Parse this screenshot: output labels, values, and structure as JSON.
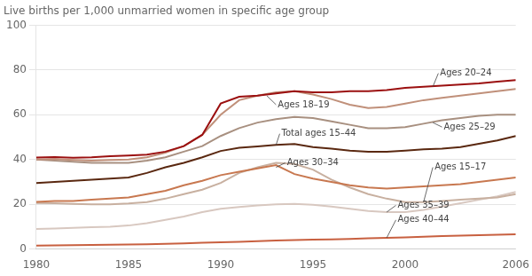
{
  "chart_data": {
    "type": "line",
    "title": "Live births per 1,000 unmarried women in specific age group",
    "xlim": [
      1980,
      2006
    ],
    "ylim": [
      0,
      100
    ],
    "xticks": [
      1980,
      1985,
      1990,
      1995,
      2000,
      2006
    ],
    "yticks": [
      0,
      20,
      40,
      60,
      80,
      100
    ],
    "grid": "y",
    "x": [
      1980,
      1981,
      1982,
      1983,
      1984,
      1985,
      1986,
      1987,
      1988,
      1989,
      1990,
      1991,
      1992,
      1993,
      1994,
      1995,
      1996,
      1997,
      1998,
      1999,
      2000,
      2001,
      2002,
      2003,
      2004,
      2005,
      2006
    ],
    "series": [
      {
        "name": "Ages 20–24",
        "color": "#9b1010",
        "values": [
          40.9,
          41.1,
          40.8,
          41.0,
          41.5,
          41.8,
          42.2,
          43.5,
          46.0,
          51.0,
          65.0,
          68.0,
          68.5,
          69.5,
          70.5,
          70.0,
          70.0,
          70.5,
          70.5,
          71.0,
          72.0,
          72.5,
          73.0,
          73.5,
          74.0,
          74.8,
          75.5
        ]
      },
      {
        "name": "Ages 18–19",
        "color": "#c0907a",
        "values": [
          40.0,
          40.2,
          39.8,
          39.5,
          39.8,
          40.0,
          41.0,
          43.0,
          46.0,
          51.0,
          60.0,
          66.5,
          68.5,
          70.0,
          70.5,
          69.0,
          67.0,
          64.5,
          63.0,
          63.5,
          65.0,
          66.5,
          67.5,
          68.5,
          69.5,
          70.5,
          71.5
        ]
      },
      {
        "name": "Ages 25–29",
        "color": "#a89080",
        "values": [
          40.0,
          39.5,
          39.0,
          38.5,
          38.5,
          38.5,
          39.5,
          41.0,
          43.5,
          46.0,
          50.5,
          54.0,
          56.5,
          58.0,
          59.0,
          58.5,
          57.0,
          55.5,
          54.0,
          54.0,
          54.5,
          56.0,
          57.5,
          58.5,
          59.5,
          60.0,
          60.0
        ]
      },
      {
        "name": "Total ages 15–44",
        "color": "#5a2810",
        "values": [
          29.5,
          30.0,
          30.5,
          31.0,
          31.5,
          32.0,
          34.0,
          36.5,
          38.5,
          41.0,
          43.8,
          45.2,
          45.8,
          46.5,
          46.9,
          45.5,
          44.8,
          44.0,
          43.5,
          43.5,
          44.0,
          44.5,
          44.8,
          45.5,
          47.0,
          48.5,
          50.5
        ]
      },
      {
        "name": "Ages 30–34",
        "color": "#c87850",
        "values": [
          21.1,
          21.5,
          21.5,
          22.0,
          22.5,
          23.0,
          24.5,
          26.0,
          28.5,
          30.5,
          33.0,
          34.5,
          36.0,
          37.5,
          33.5,
          31.5,
          30.0,
          28.5,
          27.5,
          27.0,
          27.5,
          28.0,
          28.5,
          29.0,
          30.0,
          31.0,
          32.0
        ]
      },
      {
        "name": "Ages 15–17",
        "color": "#c8b0a0",
        "values": [
          20.6,
          20.5,
          20.2,
          20.0,
          20.0,
          20.4,
          21.0,
          22.5,
          24.5,
          26.5,
          29.5,
          34.0,
          36.5,
          38.5,
          38.0,
          35.5,
          31.0,
          27.5,
          24.5,
          22.5,
          21.0,
          21.0,
          21.5,
          22.0,
          22.5,
          23.0,
          24.5
        ]
      },
      {
        "name": "Ages 35–39",
        "color": "#d8c8c0",
        "values": [
          9.0,
          9.2,
          9.5,
          9.8,
          10.0,
          10.5,
          11.5,
          13.0,
          14.5,
          16.5,
          18.0,
          18.8,
          19.5,
          20.0,
          20.2,
          19.8,
          19.0,
          18.0,
          17.0,
          16.5,
          16.5,
          17.5,
          19.0,
          20.5,
          22.0,
          23.5,
          25.5
        ]
      },
      {
        "name": "Ages 40–44",
        "color": "#c86040",
        "values": [
          1.5,
          1.6,
          1.7,
          1.8,
          1.9,
          2.0,
          2.1,
          2.3,
          2.5,
          2.8,
          3.0,
          3.2,
          3.5,
          3.8,
          4.0,
          4.2,
          4.3,
          4.5,
          4.8,
          5.0,
          5.2,
          5.5,
          5.8,
          6.0,
          6.2,
          6.4,
          6.6
        ]
      }
    ],
    "annotations": [
      {
        "text": "Ages 20–24",
        "xy": [
          2001.5,
          72.5
        ],
        "xytext": [
          2001.8,
          78.5
        ]
      },
      {
        "text": "Ages 18–19",
        "xy": [
          1992.5,
          68.5
        ],
        "xytext": [
          1993.0,
          64.5
        ]
      },
      {
        "text": "Ages 25–29",
        "xy": [
          2001.5,
          56.5
        ],
        "xytext": [
          2002.0,
          54.5
        ]
      },
      {
        "text": "Total ages 15–44",
        "xy": [
          1993.0,
          46.5
        ],
        "xytext": [
          1993.2,
          51.5
        ]
      },
      {
        "text": "Ages 30–34",
        "xy": [
          1993.0,
          36.5
        ],
        "xytext": [
          1993.5,
          38.5
        ]
      },
      {
        "text": "Ages 15–17",
        "xy": [
          2001.0,
          21.0
        ],
        "xytext": [
          2001.5,
          36.5
        ]
      },
      {
        "text": "Ages 35–39",
        "xy": [
          1999.0,
          16.5
        ],
        "xytext": [
          1999.5,
          19.5
        ]
      },
      {
        "text": "Ages 40–44",
        "xy": [
          1999.0,
          5.0
        ],
        "xytext": [
          1999.5,
          13.0
        ]
      }
    ]
  }
}
